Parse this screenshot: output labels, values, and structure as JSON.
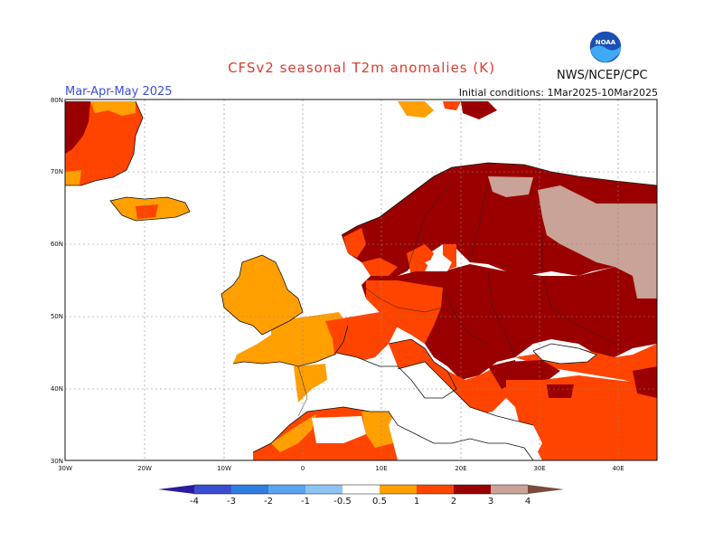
{
  "title": "CFSv2 seasonal T2m anomalies (K)",
  "season": "Mar-Apr-May 2025",
  "initial_conditions": "Initial conditions: 1Mar2025-10Mar2025",
  "organization": "NWS/NCEP/CPC",
  "logo_text": "NOAA",
  "lat_labels": [
    "30N",
    "40N",
    "50N",
    "60N",
    "70N",
    "80N"
  ],
  "lon_labels": [
    "30W",
    "20W",
    "10W",
    "0",
    "10E",
    "20E",
    "30E",
    "40E"
  ],
  "colorbar": {
    "ticks": [
      "-4",
      "-3",
      "-2",
      "-1",
      "-0.5",
      "0.5",
      "1",
      "2",
      "3",
      "4"
    ],
    "colors": [
      "#2a1a9c",
      "#3a4dd0",
      "#2f7ee0",
      "#58a4f0",
      "#8cc4f4",
      "#ffffff",
      "#ff9f00",
      "#ff4400",
      "#e01010",
      "#9a0000",
      "#c9a298",
      "#7a4a3a"
    ]
  },
  "anomaly_colors": {
    "c05": "#ff9f00",
    "c1": "#ff4400",
    "c2": "#e01010",
    "c3": "#9a0000",
    "c4": "#c9a298"
  }
}
